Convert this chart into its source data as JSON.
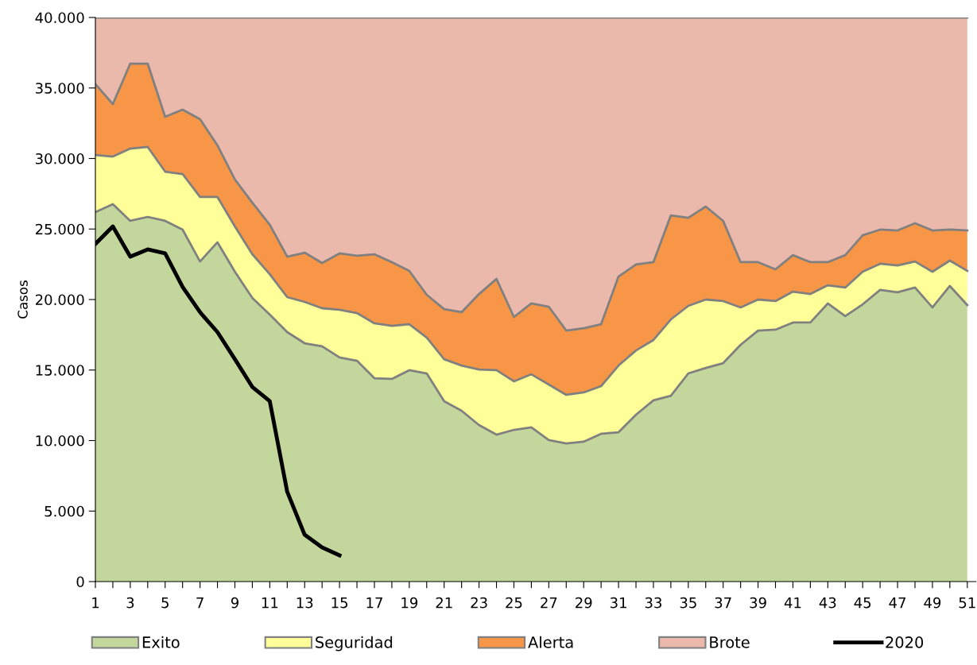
{
  "chart_data": {
    "type": "area",
    "stacked": true,
    "ylabel": "Casos",
    "x": [
      1,
      2,
      3,
      4,
      5,
      6,
      7,
      8,
      9,
      10,
      11,
      12,
      13,
      14,
      15,
      16,
      17,
      18,
      19,
      20,
      21,
      22,
      23,
      24,
      25,
      26,
      27,
      28,
      29,
      30,
      31,
      32,
      33,
      34,
      35,
      36,
      37,
      38,
      39,
      40,
      41,
      42,
      43,
      44,
      45,
      46,
      47,
      48,
      49,
      50,
      51
    ],
    "xlim": [
      1,
      51.5
    ],
    "xticks": [
      1,
      {
        "value": 2,
        "label": null
      },
      3,
      {
        "value": 4,
        "label": null
      },
      5,
      {
        "value": 6,
        "label": null
      },
      7,
      {
        "value": 8,
        "label": null
      },
      9,
      {
        "value": 10,
        "label": null
      },
      11,
      {
        "value": 12,
        "label": null
      },
      13,
      {
        "value": 14,
        "label": null
      },
      15,
      {
        "value": 16,
        "label": null
      },
      17,
      {
        "value": 18,
        "label": null
      },
      19,
      {
        "value": 20,
        "label": null
      },
      21,
      {
        "value": 22,
        "label": null
      },
      23,
      {
        "value": 24,
        "label": null
      },
      25,
      {
        "value": 26,
        "label": null
      },
      27,
      {
        "value": 28,
        "label": null
      },
      29,
      {
        "value": 30,
        "label": null
      },
      31,
      {
        "value": 32,
        "label": null
      },
      33,
      {
        "value": 34,
        "label": null
      },
      35,
      {
        "value": 36,
        "label": null
      },
      37,
      {
        "value": 38,
        "label": null
      },
      39,
      {
        "value": 40,
        "label": null
      },
      41,
      {
        "value": 42,
        "label": null
      },
      43,
      {
        "value": 44,
        "label": null
      },
      45,
      {
        "value": 46,
        "label": null
      },
      47,
      {
        "value": 48,
        "label": null
      },
      49,
      {
        "value": 50,
        "label": null
      },
      51
    ],
    "ylim": [
      0,
      40000
    ],
    "yticks": [
      0,
      {
        "value": 5000,
        "label": "5.000"
      },
      {
        "value": 10000,
        "label": "10.000"
      },
      {
        "value": 15000,
        "label": "15.000"
      },
      {
        "value": 20000,
        "label": "20.000"
      },
      {
        "value": 25000,
        "label": "25.000"
      },
      {
        "value": 30000,
        "label": "30.000"
      },
      {
        "value": 35000,
        "label": "35.000"
      },
      {
        "value": 40000,
        "label": "40.000"
      }
    ],
    "legend": "bottom",
    "series": [
      {
        "name": "Exito",
        "color": "#c3d69b",
        "values": [
          26200,
          26760,
          25580,
          25860,
          25580,
          24960,
          22700,
          24060,
          21970,
          20110,
          18930,
          17690,
          16900,
          16680,
          15890,
          15660,
          14420,
          14370,
          14990,
          14760,
          12790,
          12110,
          11100,
          10420,
          10760,
          10930,
          10030,
          9800,
          9920,
          10480,
          10590,
          11830,
          12850,
          13180,
          14760,
          15150,
          15490,
          16790,
          17800,
          17860,
          18370,
          18370,
          19720,
          18820,
          19660,
          20680,
          20510,
          20850,
          19440,
          20960,
          19610
        ]
      },
      {
        "name": "Seguridad",
        "color": "#ffff99",
        "values": [
          4050,
          3380,
          5120,
          4960,
          3490,
          3940,
          4570,
          3210,
          3210,
          3100,
          2870,
          2480,
          2930,
          2700,
          3380,
          3380,
          3890,
          3770,
          3260,
          2540,
          2980,
          3210,
          3940,
          4570,
          3440,
          3770,
          3940,
          3440,
          3490,
          3380,
          4730,
          4560,
          4280,
          5410,
          4790,
          4850,
          4400,
          2650,
          2200,
          2030,
          2190,
          2020,
          1290,
          2030,
          2310,
          1860,
          1910,
          1850,
          2530,
          1800,
          2420
        ]
      },
      {
        "name": "Alerta",
        "color": "#f79646",
        "values": [
          5020,
          3720,
          6030,
          5910,
          3890,
          4560,
          5520,
          3660,
          3330,
          3660,
          3500,
          2870,
          3490,
          3210,
          4000,
          4060,
          4900,
          4510,
          3780,
          3040,
          3550,
          3780,
          5350,
          6470,
          4560,
          5020,
          5520,
          4560,
          4560,
          4390,
          6310,
          6090,
          5520,
          7380,
          6250,
          6590,
          5690,
          3210,
          2650,
          2250,
          2590,
          2260,
          1640,
          2300,
          2590,
          2420,
          2480,
          2710,
          2930,
          2200,
          2870
        ]
      },
      {
        "name": "Brote",
        "color": "#ebb9ab",
        "values": [
          4730,
          6140,
          3270,
          3270,
          7040,
          6540,
          7210,
          9070,
          11490,
          13130,
          14700,
          16960,
          16680,
          17410,
          16730,
          16900,
          16790,
          17350,
          17970,
          19660,
          20680,
          20900,
          19610,
          18540,
          21240,
          20280,
          20510,
          22200,
          22030,
          21750,
          18370,
          17520,
          17350,
          14030,
          14200,
          13410,
          14420,
          17350,
          17350,
          17860,
          16850,
          17350,
          17350,
          16850,
          15440,
          15040,
          15100,
          14590,
          15100,
          15040,
          15100
        ]
      },
      {
        "name": "2020",
        "type": "line",
        "color": "#000000",
        "x": [
          1,
          2,
          3,
          4,
          5,
          6,
          7,
          8,
          9,
          10,
          11,
          12,
          13,
          14,
          15
        ],
        "values": [
          23940,
          25180,
          23040,
          23550,
          23270,
          20900,
          19100,
          17690,
          15770,
          13800,
          12790,
          6370,
          3320,
          2420,
          1860
        ]
      }
    ]
  }
}
